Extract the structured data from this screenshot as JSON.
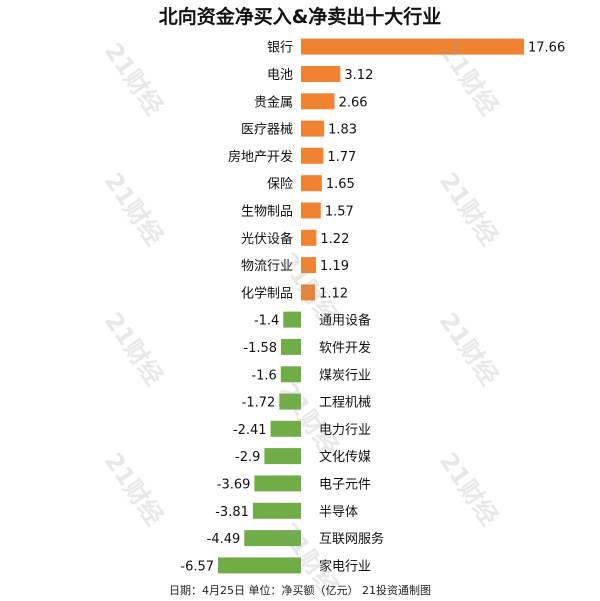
{
  "title": "北向资金净买入&净卖出十大行业",
  "footer": "日期：4月25日 单位：净买额（亿元） 21投资通制图",
  "watermark": "21财经",
  "colors": {
    "positive": "#F08232",
    "negative": "#70AD47",
    "label": "#111111"
  },
  "chart_data": {
    "type": "bar",
    "orientation": "horizontal",
    "title": "北向资金净买入&净卖出十大行业",
    "xlabel": "",
    "ylabel": "",
    "unit": "净买额（亿元）",
    "categories": [
      "银行",
      "电池",
      "贵金属",
      "医疗器械",
      "房地产开发",
      "保险",
      "生物制品",
      "光伏设备",
      "物流行业",
      "化学制品",
      "通用设备",
      "软件开发",
      "煤炭行业",
      "工程机械",
      "电力行业",
      "文化传媒",
      "电子元件",
      "半导体",
      "互联网服务",
      "家电行业"
    ],
    "values": [
      17.66,
      3.12,
      2.66,
      1.83,
      1.77,
      1.65,
      1.57,
      1.22,
      1.19,
      1.12,
      -1.4,
      -1.58,
      -1.6,
      -1.72,
      -2.41,
      -2.9,
      -3.69,
      -3.81,
      -4.49,
      -6.57
    ],
    "value_labels": [
      "17.66",
      "3.12",
      "2.66",
      "1.83",
      "1.77",
      "1.65",
      "1.57",
      "1.22",
      "1.19",
      "1.12",
      "-1.4",
      "-1.58",
      "-1.6",
      "-1.72",
      "-2.41",
      "-2.9",
      "-3.69",
      "-3.81",
      "-4.49",
      "-6.57"
    ],
    "grid": false,
    "legend": "none"
  }
}
